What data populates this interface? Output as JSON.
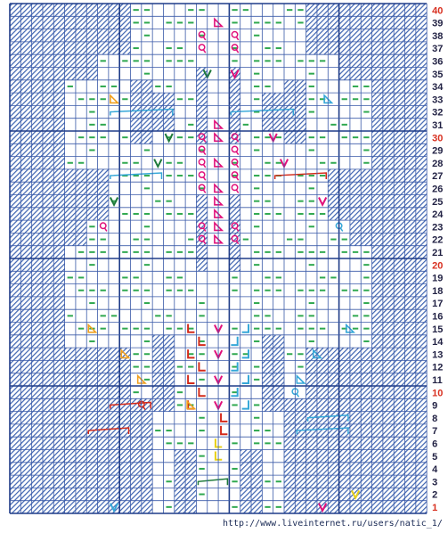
{
  "chart": {
    "rows": 40,
    "cols": 38,
    "row_labels": [
      "1",
      "2",
      "3",
      "4",
      "5",
      "6",
      "7",
      "8",
      "9",
      "10",
      "11",
      "12",
      "13",
      "14",
      "15",
      "16",
      "17",
      "18",
      "19",
      "20",
      "21",
      "22",
      "23",
      "24",
      "25",
      "26",
      "27",
      "28",
      "29",
      "30",
      "31",
      "32",
      "33",
      "34",
      "35",
      "36",
      "37",
      "38",
      "39",
      "40"
    ],
    "highlight_rows": [
      "1",
      "10",
      "20",
      "30",
      "40"
    ],
    "colors": {
      "grid": "#3a5aa8",
      "grid_bold": "#1f3c88",
      "hatch": "#3d63b0",
      "dash": "#2fa84f",
      "row_label": "#222244",
      "row_label_highlight": "#d83020",
      "magenta": "#e0107a",
      "red": "#d42a1a",
      "orange": "#f0a020",
      "cyan": "#35a7d8",
      "yellow": "#e8d018",
      "dark_green": "#1e7a3a"
    },
    "legend_symbols": [
      "dash-purl",
      "twist-knot",
      "left-cross",
      "right-cross",
      "decrease-v",
      "triangle-increase",
      "cable-bracket"
    ]
  },
  "watermark": {
    "text": "http://www.liveinternet.ru/users/natic_1/"
  }
}
